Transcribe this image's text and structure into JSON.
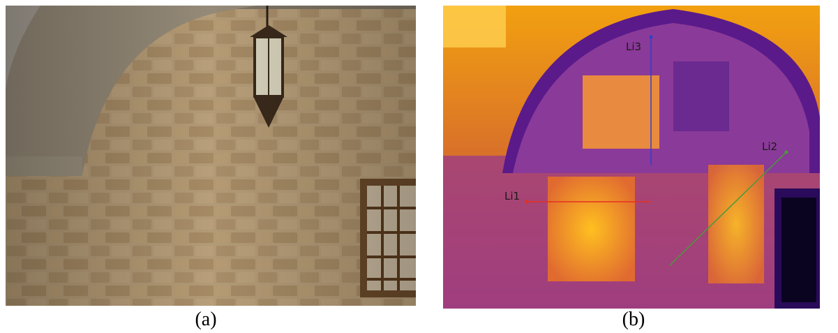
{
  "panels": [
    {
      "id": "a",
      "caption": "(a)"
    },
    {
      "id": "b",
      "caption": "(b)"
    }
  ],
  "thermal": {
    "lines": [
      {
        "label": "Li1",
        "color": "#e53020"
      },
      {
        "label": "Li2",
        "color": "#4a9a3a"
      },
      {
        "label": "Li3",
        "color": "#3040c8"
      }
    ]
  },
  "colors": {
    "stone": "#a89170",
    "arch_plaster": "#8e8270",
    "thermal_hot": "#ffb000",
    "thermal_cold": "#2a0a5a"
  }
}
